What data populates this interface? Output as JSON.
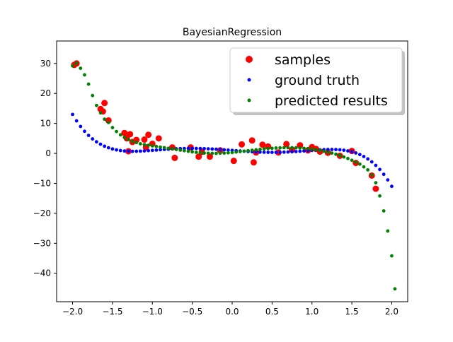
{
  "chart_data": {
    "type": "scatter",
    "title": "BayesianRegression",
    "xlabel": "",
    "ylabel": "",
    "xlim": [
      -2.2,
      2.2
    ],
    "ylim": [
      -49.5,
      37.5
    ],
    "x_ticks": [
      -2.0,
      -1.5,
      -1.0,
      -0.5,
      0.0,
      0.5,
      1.0,
      1.5,
      2.0
    ],
    "x_tick_labels": [
      "−2.0",
      "−1.5",
      "−1.0",
      "−0.5",
      "0.0",
      "0.5",
      "1.0",
      "1.5",
      "2.0"
    ],
    "y_ticks": [
      -40,
      -30,
      -20,
      -10,
      0,
      10,
      20,
      30
    ],
    "y_tick_labels": [
      "−40",
      "−30",
      "−20",
      "−10",
      "0",
      "10",
      "20",
      "30"
    ],
    "grid": false,
    "legend_position": "top-right",
    "series": [
      {
        "name": "samples",
        "color": "#ff0000",
        "marker": "large-dot",
        "points": [
          [
            -1.98,
            29.5
          ],
          [
            -1.95,
            30.0
          ],
          [
            -1.65,
            14.8
          ],
          [
            -1.62,
            14.0
          ],
          [
            -1.6,
            16.8
          ],
          [
            -1.55,
            11.0
          ],
          [
            -1.35,
            6.8
          ],
          [
            -1.32,
            5.0
          ],
          [
            -1.3,
            0.7
          ],
          [
            -1.28,
            6.4
          ],
          [
            -1.25,
            3.8
          ],
          [
            -1.2,
            4.5
          ],
          [
            -1.1,
            4.6
          ],
          [
            -1.08,
            2.0
          ],
          [
            -1.05,
            6.2
          ],
          [
            -1.0,
            3.2
          ],
          [
            -0.92,
            5.0
          ],
          [
            -0.75,
            2.0
          ],
          [
            -0.72,
            -1.5
          ],
          [
            -0.52,
            2.0
          ],
          [
            -0.42,
            -1.1
          ],
          [
            -0.38,
            0.5
          ],
          [
            -0.28,
            -1.1
          ],
          [
            -0.15,
            1.0
          ],
          [
            0.02,
            -2.5
          ],
          [
            0.12,
            3.0
          ],
          [
            0.25,
            4.3
          ],
          [
            0.27,
            -3.0
          ],
          [
            0.3,
            0.3
          ],
          [
            0.38,
            2.9
          ],
          [
            0.45,
            2.3
          ],
          [
            0.58,
            0.3
          ],
          [
            0.68,
            3.1
          ],
          [
            0.75,
            1.2
          ],
          [
            0.85,
            2.7
          ],
          [
            0.95,
            1.0
          ],
          [
            1.0,
            2.1
          ],
          [
            1.05,
            1.5
          ],
          [
            1.1,
            0.6
          ],
          [
            1.2,
            0.2
          ],
          [
            1.35,
            -0.8
          ],
          [
            1.5,
            0.8
          ],
          [
            1.55,
            -3.2
          ],
          [
            1.75,
            -7.4
          ],
          [
            1.8,
            -11.8
          ]
        ]
      },
      {
        "name": "ground truth",
        "color": "#0000ff",
        "marker": "small-dot",
        "samples": 81,
        "function": "-x^5 + 3x^3 - 2x + 1"
      },
      {
        "name": "predicted results",
        "color": "#008000",
        "marker": "small-dot",
        "points": [
          [
            -2.0,
            29.2
          ],
          [
            -1.95,
            30.1
          ],
          [
            -1.9,
            28.4
          ],
          [
            -1.85,
            26.2
          ],
          [
            -1.8,
            23.1
          ],
          [
            -1.75,
            19.3
          ],
          [
            -1.7,
            16.0
          ],
          [
            -1.65,
            13.5
          ],
          [
            -1.6,
            11.4
          ],
          [
            -1.55,
            10.3
          ],
          [
            -1.5,
            8.6
          ],
          [
            -1.45,
            7.3
          ],
          [
            -1.4,
            6.2
          ],
          [
            -1.35,
            5.3
          ],
          [
            -1.3,
            4.6
          ],
          [
            -1.25,
            4.0
          ],
          [
            -1.2,
            3.6
          ],
          [
            -1.15,
            3.2
          ],
          [
            -1.1,
            2.9
          ],
          [
            -1.05,
            2.7
          ],
          [
            -1.0,
            2.5
          ],
          [
            -0.95,
            2.3
          ],
          [
            -0.9,
            2.1
          ],
          [
            -0.85,
            1.9
          ],
          [
            -0.8,
            1.7
          ],
          [
            -0.75,
            1.5
          ],
          [
            -0.7,
            1.3
          ],
          [
            -0.65,
            1.1
          ],
          [
            -0.6,
            0.9
          ],
          [
            -0.55,
            0.7
          ],
          [
            -0.5,
            0.5
          ],
          [
            -0.45,
            0.35
          ],
          [
            -0.4,
            0.2
          ],
          [
            -0.35,
            0.1
          ],
          [
            -0.3,
            0.05
          ],
          [
            -0.25,
            0.0
          ],
          [
            -0.2,
            0.0
          ],
          [
            -0.15,
            0.05
          ],
          [
            -0.1,
            0.1
          ],
          [
            -0.05,
            0.2
          ],
          [
            0.0,
            0.3
          ],
          [
            0.05,
            0.45
          ],
          [
            0.1,
            0.6
          ],
          [
            0.15,
            0.75
          ],
          [
            0.2,
            0.9
          ],
          [
            0.25,
            1.05
          ],
          [
            0.3,
            1.2
          ],
          [
            0.35,
            1.35
          ],
          [
            0.4,
            1.5
          ],
          [
            0.45,
            1.6
          ],
          [
            0.5,
            1.7
          ],
          [
            0.55,
            1.8
          ],
          [
            0.6,
            1.85
          ],
          [
            0.65,
            1.9
          ],
          [
            0.7,
            1.9
          ],
          [
            0.75,
            1.9
          ],
          [
            0.8,
            1.85
          ],
          [
            0.85,
            1.8
          ],
          [
            0.9,
            1.7
          ],
          [
            0.95,
            1.6
          ],
          [
            1.0,
            1.4
          ],
          [
            1.05,
            1.2
          ],
          [
            1.1,
            1.0
          ],
          [
            1.15,
            0.7
          ],
          [
            1.2,
            0.4
          ],
          [
            1.25,
            0.1
          ],
          [
            1.3,
            -0.3
          ],
          [
            1.35,
            -0.7
          ],
          [
            1.4,
            -1.2
          ],
          [
            1.45,
            -1.7
          ],
          [
            1.5,
            -2.3
          ],
          [
            1.55,
            -2.9
          ],
          [
            1.6,
            -3.6
          ],
          [
            1.65,
            -4.5
          ],
          [
            1.7,
            -5.5
          ],
          [
            1.75,
            -7.2
          ],
          [
            1.8,
            -9.8
          ],
          [
            1.85,
            -14.2
          ],
          [
            1.9,
            -19.2
          ],
          [
            1.95,
            -25.9
          ],
          [
            2.0,
            -34.2
          ],
          [
            2.04,
            -45.2
          ]
        ]
      }
    ]
  }
}
